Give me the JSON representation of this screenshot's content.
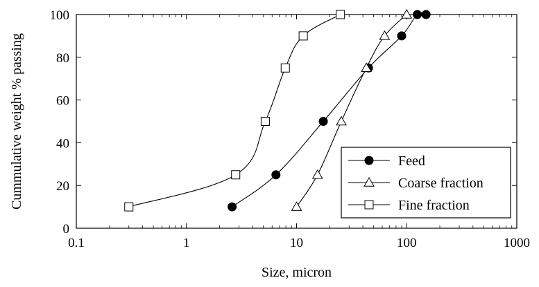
{
  "chart_data": {
    "type": "scatter",
    "xscale": "log",
    "xlabel": "Size, micron",
    "ylabel": "Cummulative weight % passing",
    "xlim": [
      0.1,
      1000
    ],
    "ylim": [
      0,
      100
    ],
    "x_ticks": [
      "0.1",
      "1",
      "10",
      "100",
      "1000"
    ],
    "y_ticks": [
      "0",
      "20",
      "40",
      "60",
      "80",
      "100"
    ],
    "grid": false,
    "legend_position": "bottom-right",
    "series": [
      {
        "name": "Feed",
        "marker": "filled-circle",
        "color": "#000000",
        "x": [
          2.6,
          6.5,
          17.5,
          45,
          90,
          125,
          150
        ],
        "y": [
          10,
          25,
          50,
          75,
          90,
          100,
          100
        ]
      },
      {
        "name": "Coarse fraction",
        "marker": "open-triangle",
        "color": "#000000",
        "x": [
          10,
          15.5,
          25.5,
          43,
          63,
          100
        ],
        "y": [
          10,
          25,
          50,
          75,
          90,
          100
        ]
      },
      {
        "name": "Fine fraction",
        "marker": "open-square",
        "color": "#000000",
        "x": [
          0.3,
          2.8,
          5.2,
          7.9,
          11.5,
          25
        ],
        "y": [
          10,
          25,
          50,
          75,
          90,
          100
        ]
      }
    ]
  }
}
